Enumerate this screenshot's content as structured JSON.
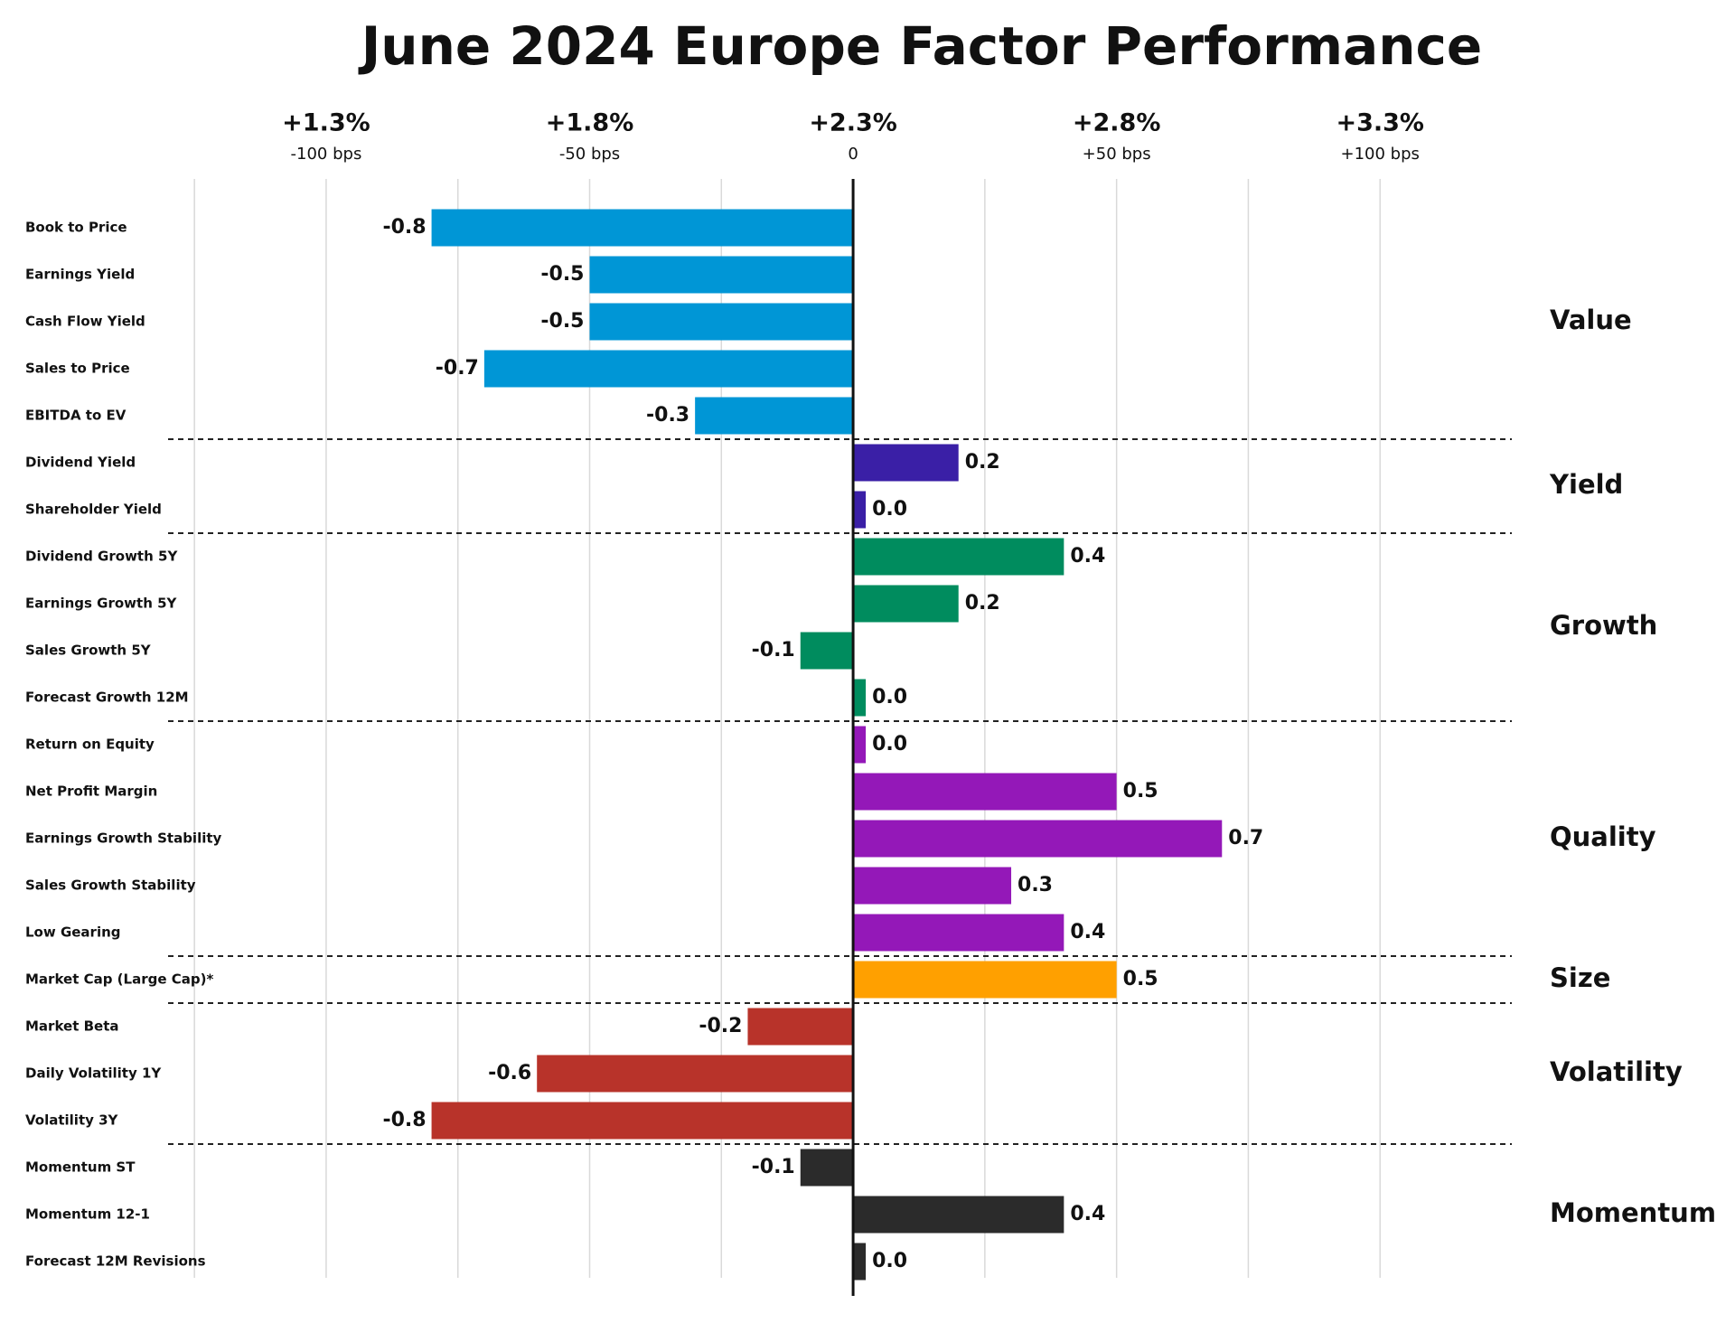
{
  "chart_data": {
    "type": "bar",
    "orientation": "horizontal",
    "title": "June 2024 Europe Factor Performance",
    "categories": [
      "Book to Price",
      "Earnings Yield",
      "Cash Flow Yield",
      "Sales to Price",
      "EBITDA to EV",
      "Dividend Yield",
      "Shareholder Yield",
      "Dividend Growth 5Y",
      "Earnings Growth 5Y",
      "Sales Growth 5Y",
      "Forecast Growth 12M",
      "Return on Equity",
      "Net Profit Margin",
      "Earnings Growth Stability",
      "Sales Growth Stability",
      "Low Gearing",
      "Market Cap (Large Cap)*",
      "Market Beta",
      "Daily Volatility 1Y",
      "Volatility 3Y",
      "Momentum ST",
      "Momentum 12-1",
      "Forecast 12M Revisions"
    ],
    "series": [
      {
        "name": "Value",
        "color": "#0096d6",
        "values": [
          -0.8,
          -0.5,
          -0.5,
          -0.7,
          -0.3,
          null,
          null,
          null,
          null,
          null,
          null,
          null,
          null,
          null,
          null,
          null,
          null,
          null,
          null,
          null,
          null,
          null,
          null
        ],
        "value_labels": [
          "-0.8",
          "-0.5",
          "-0.5",
          "-0.7",
          "-0.3",
          null,
          null,
          null,
          null,
          null,
          null,
          null,
          null,
          null,
          null,
          null,
          null,
          null,
          null,
          null,
          null,
          null,
          null
        ]
      },
      {
        "name": "Yield",
        "color": "#3a1fa6",
        "values": [
          null,
          null,
          null,
          null,
          null,
          0.2,
          0.0,
          null,
          null,
          null,
          null,
          null,
          null,
          null,
          null,
          null,
          null,
          null,
          null,
          null,
          null,
          null,
          null
        ],
        "value_labels": [
          null,
          null,
          null,
          null,
          null,
          "0.2",
          "0.0",
          null,
          null,
          null,
          null,
          null,
          null,
          null,
          null,
          null,
          null,
          null,
          null,
          null,
          null,
          null,
          null
        ]
      },
      {
        "name": "Growth",
        "color": "#008c5e",
        "values": [
          null,
          null,
          null,
          null,
          null,
          null,
          null,
          0.4,
          0.2,
          -0.1,
          0.0,
          null,
          null,
          null,
          null,
          null,
          null,
          null,
          null,
          null,
          null,
          null,
          null
        ],
        "value_labels": [
          null,
          null,
          null,
          null,
          null,
          null,
          null,
          "0.4",
          "0.2",
          "-0.1",
          "0.0",
          null,
          null,
          null,
          null,
          null,
          null,
          null,
          null,
          null,
          null,
          null,
          null
        ]
      },
      {
        "name": "Quality",
        "color": "#9418b8",
        "values": [
          null,
          null,
          null,
          null,
          null,
          null,
          null,
          null,
          null,
          null,
          null,
          0.0,
          0.5,
          0.7,
          0.3,
          0.4,
          null,
          null,
          null,
          null,
          null,
          null,
          null
        ],
        "value_labels": [
          null,
          null,
          null,
          null,
          null,
          null,
          null,
          null,
          null,
          null,
          null,
          "0.0",
          "0.5",
          "0.7",
          "0.3",
          "0.4",
          null,
          null,
          null,
          null,
          null,
          null,
          null
        ]
      },
      {
        "name": "Size",
        "color": "#ffa000",
        "values": [
          null,
          null,
          null,
          null,
          null,
          null,
          null,
          null,
          null,
          null,
          null,
          null,
          null,
          null,
          null,
          null,
          0.5,
          null,
          null,
          null,
          null,
          null,
          null
        ],
        "value_labels": [
          null,
          null,
          null,
          null,
          null,
          null,
          null,
          null,
          null,
          null,
          null,
          null,
          null,
          null,
          null,
          null,
          "0.5",
          null,
          null,
          null,
          null,
          null,
          null
        ]
      },
      {
        "name": "Volatility",
        "color": "#b8332a",
        "values": [
          null,
          null,
          null,
          null,
          null,
          null,
          null,
          null,
          null,
          null,
          null,
          null,
          null,
          null,
          null,
          null,
          null,
          -0.2,
          -0.6,
          -0.8,
          null,
          null,
          null
        ],
        "value_labels": [
          null,
          null,
          null,
          null,
          null,
          null,
          null,
          null,
          null,
          null,
          null,
          null,
          null,
          null,
          null,
          null,
          null,
          "-0.2",
          "-0.6",
          "-0.8",
          null,
          null,
          null
        ]
      },
      {
        "name": "Momentum",
        "color": "#2b2b2b",
        "values": [
          null,
          null,
          null,
          null,
          null,
          null,
          null,
          null,
          null,
          null,
          null,
          null,
          null,
          null,
          null,
          null,
          null,
          null,
          null,
          null,
          -0.1,
          0.4,
          0.0
        ],
        "value_labels": [
          null,
          null,
          null,
          null,
          null,
          null,
          null,
          null,
          null,
          null,
          null,
          null,
          null,
          null,
          null,
          null,
          null,
          null,
          null,
          null,
          "-0.1",
          "0.4",
          "0.0"
        ]
      }
    ],
    "xlim": [
      -1.3,
      1.25
    ],
    "xticks": [
      {
        "value": -1,
        "label": "-100 bps",
        "top_label": "+1.3%"
      },
      {
        "value": -0.5,
        "label": "-50 bps",
        "top_label": "+1.8%"
      },
      {
        "value": 0,
        "label": "0",
        "top_label": "+2.3%"
      },
      {
        "value": 0.5,
        "label": "+50 bps",
        "top_label": "+2.8%"
      },
      {
        "value": 1,
        "label": "+100 bps",
        "top_label": "+3.3%"
      }
    ],
    "xgrid": [
      -1.25,
      -1,
      -0.75,
      -0.5,
      -0.25,
      0.25,
      0.5,
      0.75,
      1
    ],
    "grid": true
  }
}
